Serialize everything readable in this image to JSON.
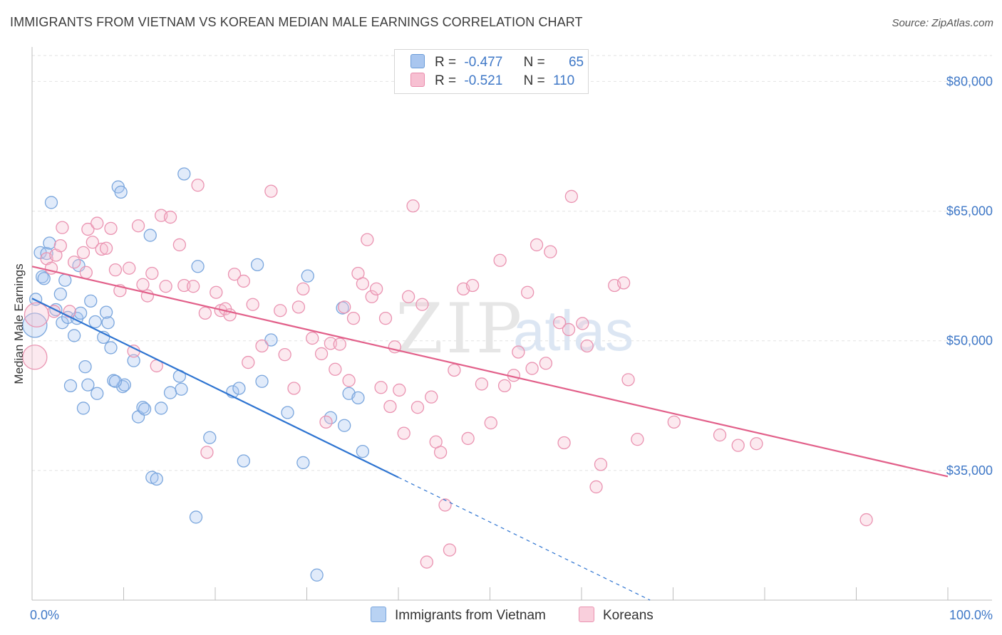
{
  "title": "IMMIGRANTS FROM VIETNAM VS KOREAN MEDIAN MALE EARNINGS CORRELATION CHART",
  "source": "Source: ZipAtlas.com",
  "watermark": {
    "zip": "ZIP",
    "atlas": "atlas"
  },
  "legend": {
    "rows": [
      {
        "r_label": "R =",
        "r_value": "-0.477",
        "n_label": "N =",
        "n_value": "65",
        "color": "#a9c6ef",
        "border": "#6a9bd8"
      },
      {
        "r_label": "R =",
        "r_value": "-0.521",
        "n_label": "N =",
        "n_value": "110",
        "color": "#f7c0d2",
        "border": "#e98aab"
      }
    ]
  },
  "bottom_legend": [
    {
      "label": "Immigrants from Vietnam",
      "color": "#b8d2f3",
      "border": "#7aa6dd"
    },
    {
      "label": "Koreans",
      "color": "#f9cfdc",
      "border": "#ea93b1"
    }
  ],
  "chart_data": {
    "type": "scatter",
    "title": "IMMIGRANTS FROM VIETNAM VS KOREAN MEDIAN MALE EARNINGS CORRELATION CHART",
    "xlabel": "",
    "ylabel": "Median Male Earnings",
    "xlim": [
      0,
      100
    ],
    "ylim": [
      20000,
      86000
    ],
    "x_tick_labels": [
      "0.0%",
      "100.0%"
    ],
    "y_ticks": [
      {
        "value": 35000,
        "label": "$35,000"
      },
      {
        "value": 50000,
        "label": "$50,000"
      },
      {
        "value": 65000,
        "label": "$65,000"
      },
      {
        "value": 80000,
        "label": "$80,000"
      }
    ],
    "grid": true,
    "series": [
      {
        "name": "Immigrants from Vietnam",
        "color": "#7aa6dd",
        "fill": "rgba(168,198,240,0.35)",
        "trend": {
          "x0": 0,
          "y0": 54900,
          "x1": 40,
          "y1": 34200,
          "dash_to_x": 100,
          "dash_to_y": 3200,
          "color": "#2e74d1"
        },
        "points": [
          [
            0.3,
            51800,
            2
          ],
          [
            0.4,
            54800,
            1
          ],
          [
            0.9,
            60200,
            1
          ],
          [
            1.1,
            57400,
            1
          ],
          [
            1.6,
            60100,
            1
          ],
          [
            1.9,
            61300,
            1
          ],
          [
            2.1,
            66000,
            1
          ],
          [
            2.6,
            53600,
            1
          ],
          [
            3.1,
            55400,
            1
          ],
          [
            3.3,
            52100,
            1
          ],
          [
            3.6,
            57000,
            1
          ],
          [
            3.9,
            52700,
            1
          ],
          [
            4.6,
            50600,
            1
          ],
          [
            5.1,
            58700,
            1
          ],
          [
            5.6,
            42200,
            1
          ],
          [
            5.8,
            47000,
            1
          ],
          [
            4.2,
            44800,
            1
          ],
          [
            6.4,
            54600,
            1
          ],
          [
            6.9,
            52200,
            1
          ],
          [
            7.1,
            43900,
            1
          ],
          [
            7.8,
            50400,
            1
          ],
          [
            6.1,
            44900,
            1
          ],
          [
            8.3,
            52100,
            1
          ],
          [
            8.6,
            49200,
            1
          ],
          [
            8.1,
            53300,
            1
          ],
          [
            9.4,
            67800,
            1
          ],
          [
            9.7,
            67200,
            1
          ],
          [
            9.9,
            44700,
            1
          ],
          [
            10.1,
            44900,
            1
          ],
          [
            8.9,
            45400,
            1
          ],
          [
            9.1,
            45300,
            1
          ],
          [
            11.1,
            47700,
            1
          ],
          [
            11.6,
            41200,
            1
          ],
          [
            12.1,
            42300,
            1
          ],
          [
            12.3,
            42100,
            1
          ],
          [
            12.9,
            62200,
            1
          ],
          [
            13.1,
            34200,
            1
          ],
          [
            13.6,
            34000,
            1
          ],
          [
            14.1,
            42200,
            1
          ],
          [
            15.1,
            44000,
            1
          ],
          [
            16.1,
            45900,
            1
          ],
          [
            16.3,
            44400,
            1
          ],
          [
            16.6,
            69300,
            1
          ],
          [
            17.9,
            29600,
            1
          ],
          [
            18.1,
            58600,
            1
          ],
          [
            19.4,
            38800,
            1
          ],
          [
            21.9,
            44100,
            1
          ],
          [
            22.6,
            44500,
            1
          ],
          [
            23.1,
            36100,
            1
          ],
          [
            24.6,
            58800,
            1
          ],
          [
            25.1,
            45300,
            1
          ],
          [
            26.1,
            50100,
            1
          ],
          [
            27.9,
            41700,
            1
          ],
          [
            29.6,
            35900,
            1
          ],
          [
            30.1,
            57500,
            1
          ],
          [
            32.6,
            41100,
            1
          ],
          [
            33.9,
            53800,
            1
          ],
          [
            34.1,
            40200,
            1
          ],
          [
            34.6,
            43900,
            1
          ],
          [
            35.6,
            43400,
            1
          ],
          [
            36.1,
            37200,
            1
          ],
          [
            31.1,
            22900,
            1
          ],
          [
            1.3,
            57200,
            1
          ],
          [
            4.9,
            52600,
            1
          ],
          [
            5.3,
            53200,
            1
          ]
        ]
      },
      {
        "name": "Koreans",
        "color": "#ea93b1",
        "fill": "rgba(247,192,210,0.35)",
        "trend": {
          "x0": 0,
          "y0": 58600,
          "x1": 100,
          "y1": 34300,
          "color": "#e2608a"
        },
        "points": [
          [
            0.3,
            48100,
            2
          ],
          [
            0.5,
            53000,
            2
          ],
          [
            1.6,
            59500,
            1
          ],
          [
            2.1,
            58400,
            1
          ],
          [
            2.4,
            53400,
            1
          ],
          [
            2.6,
            59900,
            1
          ],
          [
            3.1,
            61000,
            1
          ],
          [
            3.3,
            63100,
            1
          ],
          [
            4.1,
            53400,
            1
          ],
          [
            4.6,
            59100,
            1
          ],
          [
            5.6,
            60200,
            1
          ],
          [
            5.9,
            57900,
            1
          ],
          [
            6.1,
            62900,
            1
          ],
          [
            6.6,
            61400,
            1
          ],
          [
            7.1,
            63600,
            1
          ],
          [
            7.6,
            60600,
            1
          ],
          [
            8.1,
            60700,
            1
          ],
          [
            8.6,
            63000,
            1
          ],
          [
            9.1,
            58200,
            1
          ],
          [
            9.6,
            55800,
            1
          ],
          [
            10.6,
            58400,
            1
          ],
          [
            11.1,
            48800,
            1
          ],
          [
            11.6,
            63300,
            1
          ],
          [
            12.1,
            56500,
            1
          ],
          [
            12.6,
            55200,
            1
          ],
          [
            13.1,
            57800,
            1
          ],
          [
            13.6,
            47100,
            1
          ],
          [
            14.1,
            64500,
            1
          ],
          [
            14.6,
            56300,
            1
          ],
          [
            15.1,
            64300,
            1
          ],
          [
            16.1,
            61100,
            1
          ],
          [
            16.6,
            56400,
            1
          ],
          [
            17.6,
            56300,
            1
          ],
          [
            18.1,
            68000,
            1
          ],
          [
            18.9,
            53200,
            1
          ],
          [
            19.1,
            37100,
            1
          ],
          [
            20.1,
            55600,
            1
          ],
          [
            20.6,
            53500,
            1
          ],
          [
            21.1,
            53700,
            1
          ],
          [
            21.6,
            53000,
            1
          ],
          [
            22.1,
            57700,
            1
          ],
          [
            23.1,
            56900,
            1
          ],
          [
            23.6,
            47500,
            1
          ],
          [
            24.1,
            54200,
            1
          ],
          [
            25.1,
            49400,
            1
          ],
          [
            26.1,
            67300,
            1
          ],
          [
            27.1,
            53500,
            1
          ],
          [
            27.6,
            48400,
            1
          ],
          [
            28.6,
            44500,
            1
          ],
          [
            29.1,
            53900,
            1
          ],
          [
            29.6,
            56000,
            1
          ],
          [
            30.6,
            50300,
            1
          ],
          [
            31.6,
            48500,
            1
          ],
          [
            32.1,
            40600,
            1
          ],
          [
            32.6,
            49700,
            1
          ],
          [
            33.1,
            46700,
            1
          ],
          [
            33.6,
            49600,
            1
          ],
          [
            34.1,
            53900,
            1
          ],
          [
            34.6,
            45400,
            1
          ],
          [
            35.1,
            52600,
            1
          ],
          [
            35.6,
            57800,
            1
          ],
          [
            36.1,
            56600,
            1
          ],
          [
            36.6,
            61700,
            1
          ],
          [
            37.1,
            55100,
            1
          ],
          [
            37.6,
            56000,
            1
          ],
          [
            38.1,
            44600,
            1
          ],
          [
            38.6,
            52600,
            1
          ],
          [
            39.1,
            42400,
            1
          ],
          [
            39.6,
            49300,
            1
          ],
          [
            40.1,
            44300,
            1
          ],
          [
            40.6,
            39300,
            1
          ],
          [
            41.1,
            55100,
            1
          ],
          [
            41.6,
            65600,
            1
          ],
          [
            42.1,
            42300,
            1
          ],
          [
            42.6,
            54200,
            1
          ],
          [
            43.1,
            24400,
            1
          ],
          [
            43.6,
            43500,
            1
          ],
          [
            44.1,
            38300,
            1
          ],
          [
            44.6,
            37100,
            1
          ],
          [
            45.1,
            31000,
            1
          ],
          [
            45.6,
            25800,
            1
          ],
          [
            46.1,
            46600,
            1
          ],
          [
            47.1,
            56000,
            1
          ],
          [
            47.6,
            38700,
            1
          ],
          [
            48.1,
            56400,
            1
          ],
          [
            49.1,
            45000,
            1
          ],
          [
            50.1,
            40500,
            1
          ],
          [
            51.1,
            59300,
            1
          ],
          [
            51.6,
            44800,
            1
          ],
          [
            52.6,
            46000,
            1
          ],
          [
            53.1,
            48700,
            1
          ],
          [
            54.1,
            55600,
            1
          ],
          [
            54.6,
            46800,
            1
          ],
          [
            55.1,
            61100,
            1
          ],
          [
            56.1,
            47400,
            1
          ],
          [
            56.6,
            60300,
            1
          ],
          [
            57.6,
            52100,
            1
          ],
          [
            58.1,
            38200,
            1
          ],
          [
            58.6,
            51300,
            1
          ],
          [
            58.9,
            66700,
            1
          ],
          [
            60.1,
            52000,
            1
          ],
          [
            60.6,
            49400,
            1
          ],
          [
            61.6,
            33100,
            1
          ],
          [
            62.1,
            35700,
            1
          ],
          [
            63.6,
            56400,
            1
          ],
          [
            64.6,
            56700,
            1
          ],
          [
            65.1,
            45500,
            1
          ],
          [
            66.1,
            38600,
            1
          ],
          [
            70.1,
            40600,
            1
          ],
          [
            75.1,
            39100,
            1
          ],
          [
            77.1,
            37900,
            1
          ],
          [
            79.1,
            38100,
            1
          ],
          [
            91.1,
            29300,
            1
          ]
        ]
      }
    ]
  }
}
